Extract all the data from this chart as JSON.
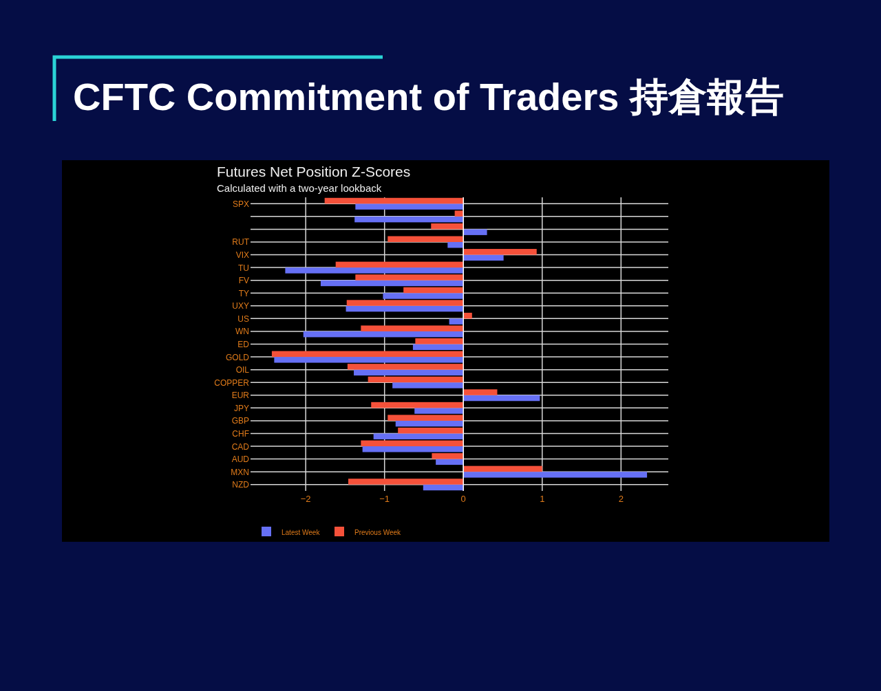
{
  "chart_data": {
    "type": "bar",
    "orientation": "horizontal",
    "title": "CFTC Commitment of Traders 持倉報告",
    "subtitle": "Futures Net Position Z-Scores",
    "annotations": [
      "Calculated with a two-year lookback"
    ],
    "categories": [
      "SPX",
      null,
      null,
      "RUT",
      "VIX",
      "TU",
      "FV",
      "TY",
      "UXY",
      "US",
      "WN",
      "ED",
      "GOLD",
      "OIL",
      "COPPER",
      "EUR",
      "JPY",
      "GBP",
      "CHF",
      "CAD",
      "AUD",
      "MXN",
      "NZD"
    ],
    "series": [
      {
        "name": "Latest Week",
        "color": "#6670f5",
        "values": [
          -1.37,
          -1.38,
          0.3,
          -0.2,
          0.51,
          -2.26,
          -1.81,
          -1.02,
          -1.49,
          -0.18,
          -2.03,
          -0.64,
          -2.4,
          -1.39,
          -0.9,
          0.97,
          -0.62,
          -0.86,
          -1.14,
          -1.28,
          -0.35,
          2.33,
          -0.51
        ]
      },
      {
        "name": "Previous Week",
        "color": "#f5513a",
        "values": [
          -1.76,
          -0.11,
          -0.41,
          -0.96,
          0.93,
          -1.62,
          -1.37,
          -0.76,
          -1.48,
          0.11,
          -1.3,
          -0.61,
          -2.43,
          -1.47,
          -1.21,
          0.43,
          -1.17,
          -0.96,
          -0.83,
          -1.3,
          -0.4,
          1.0,
          -1.46
        ]
      }
    ],
    "xlim": [
      -2.7,
      2.6
    ],
    "xticks": [
      {
        "value": -2,
        "label": "−2"
      },
      {
        "value": -1,
        "label": "−1"
      },
      0,
      1,
      2
    ],
    "grid": true,
    "legend": "bottom"
  }
}
